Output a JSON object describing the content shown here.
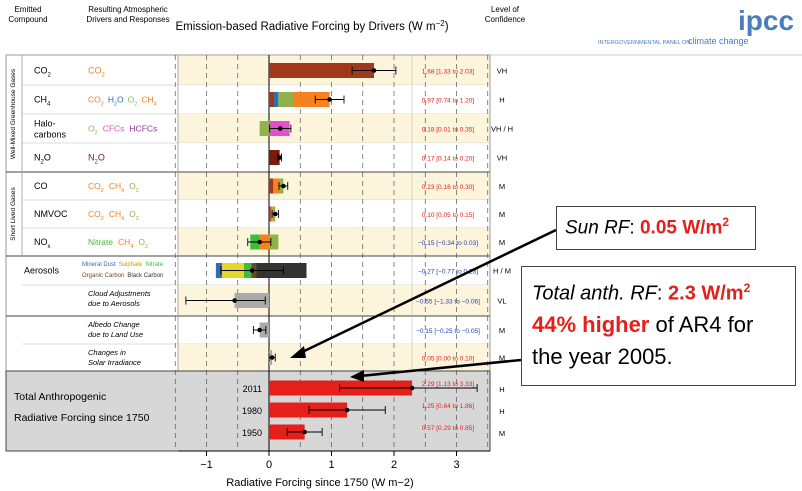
{
  "header": {
    "col_emitted": [
      "Emitted",
      "Compound"
    ],
    "col_resulting": [
      "Resulting Atmospheric",
      "Drivers and Responses"
    ],
    "title": "Emission-based Radiative Forcing by Drivers (W m",
    "title_sup": "−2",
    "title_end": ")",
    "col_confidence": [
      "Level of",
      "Confidence"
    ]
  },
  "logo": {
    "text": "ipcc",
    "subtitle_a": "INTERGOVERNMENTAL PANEL ON",
    "subtitle_b": "climate change"
  },
  "groups": [
    {
      "label": "Well-Mixed Greenhouse Gases"
    },
    {
      "label": "Short Lived Gases"
    }
  ],
  "rows": [
    {
      "compound": "CO",
      "sub": "2",
      "value_text": "1.68 [1.33 to 2.03]",
      "confidence": "VH"
    },
    {
      "compound": "CH",
      "sub": "4",
      "value_text": "0.97 [0.74 to 1.20]",
      "confidence": "H"
    },
    {
      "compound": "Halo-",
      "compound2": "carbons",
      "value_text": "0.18 [0.01 to 0.35]",
      "confidence": "VH / H"
    },
    {
      "compound": "N",
      "sub": "2",
      "tail": "O",
      "value_text": "0.17 [0.14 to 0.20]",
      "confidence": "VH"
    },
    {
      "compound": "CO",
      "value_text": "0.23 [0.16 to 0.30]",
      "confidence": "M"
    },
    {
      "compound": "NMVOC",
      "value_text": "0.10 [0.05 to 0.15]",
      "confidence": "M"
    },
    {
      "compound": "NO",
      "sub": "x",
      "value_text": "−0.15 [−0.34 to 0.03]",
      "confidence": "M"
    },
    {
      "compound": "Aerosols",
      "value_text": "−0.27 [−0.77 to 0.23]",
      "confidence": "H / M"
    },
    {
      "compound": "",
      "value_text": "−0.55 [−1.33 to −0.06]",
      "confidence": "VL"
    },
    {
      "compound": "",
      "value_text": "−0.15 [−0.25 to −0.05]",
      "confidence": "M"
    },
    {
      "compound": "",
      "value_text": "0.05 [0.00 to 0.10]",
      "confidence": "M"
    }
  ],
  "drivers": {
    "co2": "CO",
    "ch4": [
      "CO",
      "H",
      "O",
      "O",
      "CH"
    ],
    "halo": [
      "O",
      "CFCs",
      "HCFCs"
    ],
    "n2o": "N",
    "co": [
      "CO",
      "CH",
      "O"
    ],
    "nmvoc": [
      "CO",
      "CH",
      "O"
    ],
    "nox": [
      "Nitrate",
      "CH",
      "O"
    ],
    "aer_line1": [
      "Mineral Dust",
      "Sulphate",
      "Nitrate"
    ],
    "aer_line2": [
      "Organic Carbon",
      "Black Carbon"
    ],
    "cloud": [
      "Cloud Adjustments",
      "due to Aerosols"
    ],
    "albedo": [
      "Albedo Change",
      "due to Land Use"
    ],
    "solar": [
      "Changes in",
      "Solar Irradiance"
    ]
  },
  "total": {
    "label1": "Total Anthropogenic",
    "label2": "Radiative Forcing since 1750",
    "rows": [
      {
        "year": "2011",
        "value_text": "2.29 [1.13 to 3.33]",
        "confidence": "H"
      },
      {
        "year": "1980",
        "value_text": "1.25 [0.64 to 1.86]",
        "confidence": "H"
      },
      {
        "year": "1950",
        "value_text": "0.57 [0.29 to 0.85]",
        "confidence": "M"
      }
    ]
  },
  "callouts": {
    "sun_label": "Sun RF",
    "sun_colon": ":",
    "sun_value": "0.05 W/m",
    "sun_sup": "2",
    "total_label": "Total anth. RF",
    "total_colon": ":",
    "total_value": "2.3 W/m",
    "total_sup": "2",
    "higher": "44% higher",
    "of_ar4": "of AR4 for",
    "year_line": "the year 2005."
  },
  "colors": {
    "co2": "#a0391c",
    "ch4": "#f5811f",
    "o3": "#8fb34a",
    "h2o": "#2c6fb7",
    "cfcs": "#e050c8",
    "n2o": "#7a1a10",
    "nitrate": "#3cbe3c",
    "dust": "#2f6db0",
    "sulphate": "#e3d82a",
    "oc": "#6b4a24",
    "bc": "#333333",
    "cloud": "#aaaaaa",
    "total": "#e5201b",
    "value_red": "#e5201b",
    "value_blue": "#1f3fb5",
    "cream": "#fdf4dc",
    "gray_box": "#d7d7d7"
  },
  "chart_data": {
    "type": "bar",
    "title": "Emission-based Radiative Forcing by Drivers (W m−2)",
    "xlabel": "Radiative Forcing since 1750 (W m−2)",
    "xlim": [
      -1.5,
      3.5
    ],
    "x_ticks": [
      -1,
      0,
      1,
      2,
      3
    ],
    "categories": [
      "CO2",
      "CH4",
      "Halocarbons",
      "N2O",
      "CO",
      "NMVOC",
      "NOx",
      "Aerosols",
      "Cloud Adjustments due to Aerosols",
      "Albedo Change due to Land Use",
      "Changes in Solar Irradiance",
      "2011",
      "1980",
      "1950"
    ],
    "rows": [
      {
        "name": "CO2",
        "value": 1.68,
        "low": 1.33,
        "high": 2.03,
        "segments": [
          {
            "driver": "CO2",
            "from": 0,
            "to": 1.68,
            "color": "co2"
          }
        ]
      },
      {
        "name": "CH4",
        "value": 0.97,
        "low": 0.74,
        "high": 1.2,
        "segments": [
          {
            "driver": "CO2",
            "from": 0,
            "to": 0.08,
            "color": "co2"
          },
          {
            "driver": "H2Ostr",
            "from": 0.08,
            "to": 0.15,
            "color": "h2o"
          },
          {
            "driver": "O3",
            "from": 0.15,
            "to": 0.4,
            "color": "o3"
          },
          {
            "driver": "CH4",
            "from": 0.4,
            "to": 0.97,
            "color": "ch4"
          }
        ]
      },
      {
        "name": "Halocarbons",
        "value": 0.18,
        "low": 0.01,
        "high": 0.35,
        "segments": [
          {
            "driver": "O3",
            "from": -0.15,
            "to": 0,
            "color": "o3"
          },
          {
            "driver": "CFCs",
            "from": 0,
            "to": 0.27,
            "color": "cfcs"
          },
          {
            "driver": "HCFCs",
            "from": 0.27,
            "to": 0.33,
            "color": "cfcs"
          }
        ]
      },
      {
        "name": "N2O",
        "value": 0.17,
        "low": 0.14,
        "high": 0.2,
        "segments": [
          {
            "driver": "N2O",
            "from": 0,
            "to": 0.17,
            "color": "n2o"
          }
        ]
      },
      {
        "name": "CO",
        "value": 0.23,
        "low": 0.16,
        "high": 0.3,
        "segments": [
          {
            "driver": "CO2",
            "from": 0,
            "to": 0.07,
            "color": "co2"
          },
          {
            "driver": "CH4",
            "from": 0.07,
            "to": 0.16,
            "color": "ch4"
          },
          {
            "driver": "O3",
            "from": 0.16,
            "to": 0.23,
            "color": "o3"
          }
        ]
      },
      {
        "name": "NMVOC",
        "value": 0.1,
        "low": 0.05,
        "high": 0.15,
        "segments": [
          {
            "driver": "CO2",
            "from": 0,
            "to": 0.03,
            "color": "co2"
          },
          {
            "driver": "CH4",
            "from": 0.03,
            "to": 0.06,
            "color": "ch4"
          },
          {
            "driver": "O3",
            "from": 0.06,
            "to": 0.1,
            "color": "o3"
          }
        ]
      },
      {
        "name": "NOx",
        "value": -0.15,
        "low": -0.34,
        "high": 0.03,
        "segments": [
          {
            "driver": "Nitrate",
            "from": -0.3,
            "to": -0.15,
            "color": "nitrate"
          },
          {
            "driver": "CH4",
            "from": -0.15,
            "to": 0,
            "color": "ch4"
          },
          {
            "driver": "O3",
            "from": 0,
            "to": 0.15,
            "color": "o3"
          }
        ]
      },
      {
        "name": "Aerosols",
        "value": -0.27,
        "low": -0.77,
        "high": 0.23,
        "segments": [
          {
            "driver": "Mineral Dust",
            "from": -0.85,
            "to": -0.75,
            "color": "dust"
          },
          {
            "driver": "Sulphate",
            "from": -0.75,
            "to": -0.4,
            "color": "sulphate"
          },
          {
            "driver": "Nitrate",
            "from": -0.4,
            "to": -0.28,
            "color": "nitrate"
          },
          {
            "driver": "Organic Carbon",
            "from": -0.28,
            "to": -0.2,
            "color": "oc"
          },
          {
            "driver": "Black Carbon",
            "from": 0,
            "to": 0.6,
            "color": "bc"
          },
          {
            "driver": "Black Carbon",
            "from": -0.2,
            "to": 0,
            "color": "bc"
          }
        ]
      },
      {
        "name": "Cloud Adjustments due to Aerosols",
        "value": -0.55,
        "low": -1.33,
        "high": -0.06,
        "segments": [
          {
            "driver": "Cloud",
            "from": -0.55,
            "to": 0,
            "color": "cloud"
          }
        ]
      },
      {
        "name": "Albedo Change due to Land Use",
        "value": -0.15,
        "low": -0.25,
        "high": -0.05,
        "segments": [
          {
            "driver": "Albedo",
            "from": -0.15,
            "to": 0,
            "color": "cloud"
          }
        ]
      },
      {
        "name": "Changes in Solar Irradiance",
        "value": 0.05,
        "low": 0.0,
        "high": 0.1,
        "segments": [
          {
            "driver": "Solar",
            "from": 0,
            "to": 0.05,
            "color": "cloud"
          }
        ]
      },
      {
        "name": "2011",
        "value": 2.29,
        "low": 1.13,
        "high": 3.33,
        "segments": [
          {
            "driver": "Total",
            "from": 0,
            "to": 2.29,
            "color": "total"
          }
        ]
      },
      {
        "name": "1980",
        "value": 1.25,
        "low": 0.64,
        "high": 1.86,
        "segments": [
          {
            "driver": "Total",
            "from": 0,
            "to": 1.25,
            "color": "total"
          }
        ]
      },
      {
        "name": "1950",
        "value": 0.57,
        "low": 0.29,
        "high": 0.85,
        "segments": [
          {
            "driver": "Total",
            "from": 0,
            "to": 0.57,
            "color": "total"
          }
        ]
      }
    ]
  }
}
